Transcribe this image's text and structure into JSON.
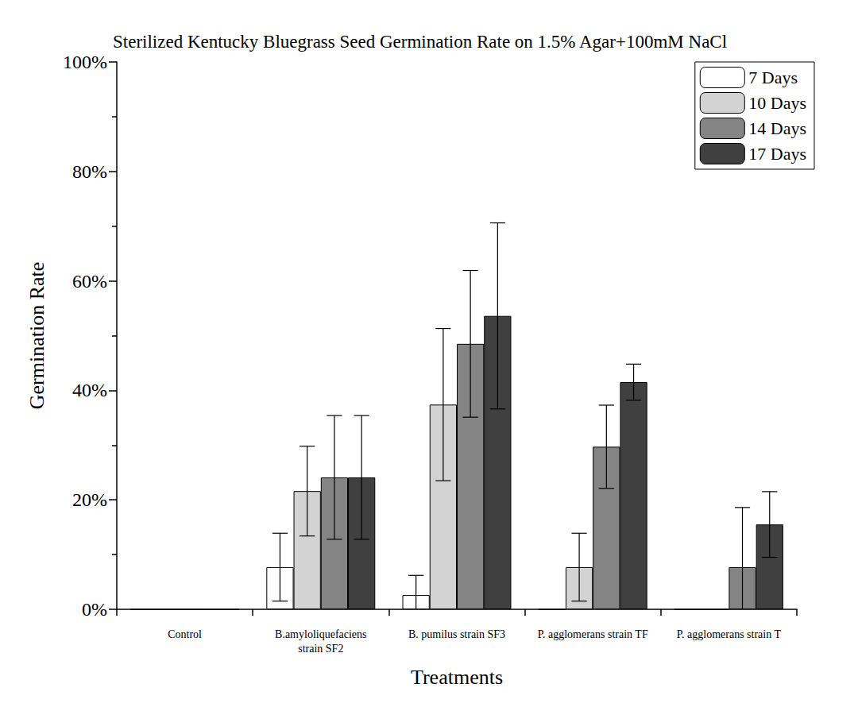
{
  "chart_data": {
    "type": "bar",
    "title": "Sterilized Kentucky Bluegrass Seed Germination Rate on 1.5% Agar+100mM NaCl",
    "x_label": "Treatments",
    "y_label": "Germination Rate",
    "categories": [
      "Control",
      "B.amyloliquefaciens\nstrain SF2",
      "B. pumilus strain SF3",
      "P. agglomerans strain TF",
      "P. agglomerans strain T"
    ],
    "series": [
      {
        "name": "7 Days",
        "color": "#ffffff",
        "values": [
          0,
          7.7,
          2.6,
          0,
          0
        ],
        "errors": [
          null,
          6.2,
          3.6,
          null,
          null
        ]
      },
      {
        "name": "10 Days",
        "color": "#d3d3d3",
        "values": [
          0,
          21.6,
          37.4,
          7.7,
          0
        ],
        "errors": [
          null,
          8.2,
          13.9,
          6.2,
          null
        ]
      },
      {
        "name": "14 Days",
        "color": "#848484",
        "values": [
          0,
          24.1,
          48.5,
          29.7,
          7.7
        ],
        "errors": [
          null,
          11.3,
          13.4,
          7.6,
          10.9
        ]
      },
      {
        "name": "17 Days",
        "color": "#404040",
        "values": [
          0,
          24.1,
          53.6,
          41.5,
          15.5
        ],
        "errors": [
          null,
          11.3,
          17.0,
          3.3,
          6.0
        ]
      }
    ],
    "ylim": [
      0,
      100
    ],
    "yticks": [
      {
        "value": 0,
        "label": "0%"
      },
      {
        "value": 20,
        "label": "20%"
      },
      {
        "value": 40,
        "label": "40%"
      },
      {
        "value": 60,
        "label": "60%"
      },
      {
        "value": 80,
        "label": "80%"
      },
      {
        "value": 100,
        "label": "100%"
      }
    ],
    "grid": false,
    "legend": "upper right"
  }
}
